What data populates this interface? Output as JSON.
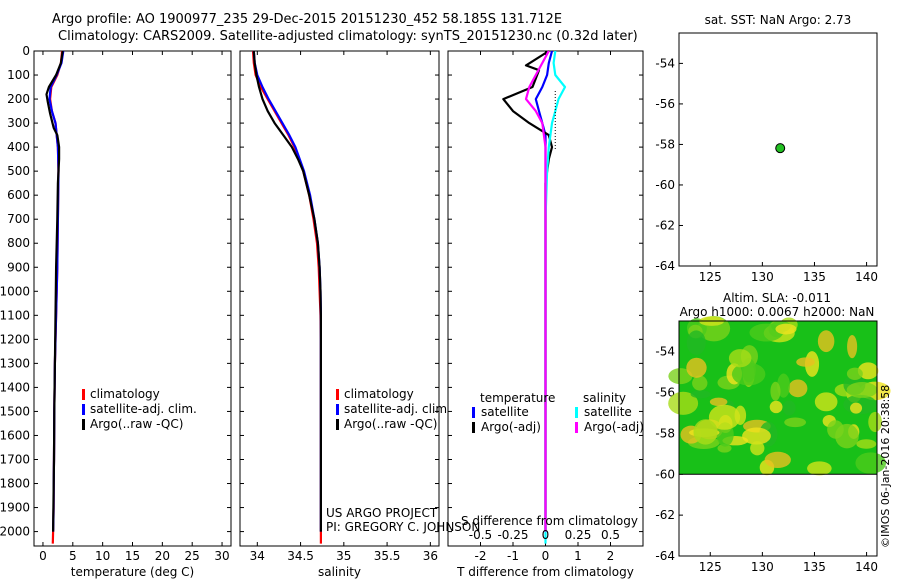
{
  "title_line1": "Argo profile: AO 1900977_235 29-Dec-2015 20151230_452 58.185S 131.712E",
  "title_line2": "Climatology: CARS2009. Satellite-adjusted climatology: synTS_20151230.nc (0.32d later)",
  "colors": {
    "climatology": "#ff0000",
    "satellite": "#0000ff",
    "argo": "#000000",
    "sat_s": "#00ffff",
    "argo_s": "#ff00ff",
    "marker": "#22c022"
  },
  "chart_data": [
    {
      "type": "line",
      "id": "temperature",
      "xlabel": "temperature (deg C)",
      "ylabel": "",
      "xlim": [
        -1.5,
        31.5
      ],
      "ylim": [
        2060,
        0
      ],
      "xticks": [
        0,
        5,
        10,
        15,
        20,
        25,
        30
      ],
      "yticks": [
        0,
        100,
        200,
        300,
        400,
        500,
        600,
        700,
        800,
        900,
        1000,
        1100,
        1200,
        1300,
        1400,
        1500,
        1600,
        1700,
        1800,
        1900,
        2000
      ],
      "legend": [
        "climatology",
        "satellite-adj. clim.",
        "Argo(..raw -QC)"
      ],
      "series": [
        {
          "name": "climatology",
          "color_key": "climatology",
          "x": [
            3.2,
            3.0,
            2.4,
            1.4,
            1.2,
            1.5,
            2.1,
            2.5,
            2.6,
            2.5,
            2.4,
            2.2,
            2.1,
            2.0,
            1.9,
            1.85,
            1.8,
            1.78,
            1.75,
            1.7,
            1.65
          ],
          "y": [
            0,
            50,
            100,
            150,
            200,
            250,
            300,
            400,
            500,
            700,
            900,
            1100,
            1200,
            1300,
            1500,
            1700,
            1800,
            1900,
            1950,
            2000,
            2050
          ]
        },
        {
          "name": "satellite-adj. clim.",
          "color_key": "satellite",
          "x": [
            3.4,
            3.1,
            2.3,
            1.3,
            1.1,
            1.5,
            2.1,
            2.5,
            2.6,
            2.5,
            2.4,
            2.2,
            2.1,
            2.0,
            1.9,
            1.85,
            1.8,
            1.78,
            1.75,
            1.7
          ],
          "y": [
            0,
            50,
            100,
            150,
            200,
            250,
            300,
            400,
            500,
            700,
            900,
            1100,
            1200,
            1300,
            1500,
            1700,
            1800,
            1900,
            1950,
            2000
          ]
        },
        {
          "name": "Argo(..raw -QC)",
          "color_key": "argo",
          "x": [
            3.3,
            3.0,
            2.2,
            1.0,
            0.6,
            0.8,
            1.2,
            1.8,
            2.4,
            2.7,
            2.7,
            2.6,
            2.5,
            2.4,
            2.2,
            2.1,
            2.0,
            1.9,
            1.85,
            1.8,
            1.75,
            1.7
          ],
          "y": [
            0,
            50,
            100,
            150,
            180,
            210,
            260,
            320,
            350,
            400,
            450,
            500,
            550,
            700,
            900,
            1100,
            1300,
            1500,
            1700,
            1800,
            1900,
            2000
          ]
        }
      ]
    },
    {
      "type": "line",
      "id": "salinity",
      "xlabel": "salinity",
      "ylabel": "",
      "xlim": [
        33.8,
        36.1
      ],
      "ylim": [
        2060,
        0
      ],
      "xticks": [
        34,
        34.5,
        35,
        35.5,
        36
      ],
      "legend": [
        "climatology",
        "satellite-adj. clim.",
        "Argo(..raw -QC)"
      ],
      "series": [
        {
          "name": "climatology",
          "color_key": "climatology",
          "x": [
            33.95,
            33.96,
            33.98,
            34.04,
            34.12,
            34.2,
            34.28,
            34.36,
            34.43,
            34.48,
            34.53,
            34.6,
            34.65,
            34.69,
            34.71,
            34.72,
            34.73,
            34.735,
            34.735,
            34.735,
            34.735
          ],
          "y": [
            0,
            50,
            100,
            150,
            200,
            250,
            300,
            350,
            400,
            450,
            500,
            600,
            700,
            800,
            900,
            1000,
            1100,
            1200,
            1500,
            1800,
            2050
          ]
        },
        {
          "name": "satellite-adj. clim.",
          "color_key": "satellite",
          "x": [
            33.96,
            33.97,
            34.0,
            34.06,
            34.13,
            34.21,
            34.29,
            34.37,
            34.44,
            34.49,
            34.54,
            34.61,
            34.66,
            34.7,
            34.72,
            34.73,
            34.735,
            34.735,
            34.735,
            34.735
          ],
          "y": [
            0,
            50,
            100,
            150,
            200,
            250,
            300,
            350,
            400,
            450,
            500,
            600,
            700,
            800,
            900,
            1000,
            1100,
            1200,
            1500,
            2000
          ]
        },
        {
          "name": "Argo(..raw -QC)",
          "color_key": "argo",
          "x": [
            33.96,
            33.97,
            33.99,
            34.02,
            34.06,
            34.12,
            34.2,
            34.3,
            34.4,
            34.47,
            34.53,
            34.6,
            34.66,
            34.7,
            34.72,
            34.73,
            34.735,
            34.735,
            34.735,
            34.735
          ],
          "y": [
            0,
            50,
            100,
            150,
            200,
            250,
            300,
            350,
            400,
            450,
            500,
            600,
            700,
            800,
            900,
            1000,
            1100,
            1200,
            1500,
            2000
          ]
        }
      ]
    },
    {
      "type": "line",
      "id": "difference",
      "xlabel": "T difference from climatology",
      "xlabel_top": "S difference from climatology",
      "xlim": [
        -3,
        3
      ],
      "ylim": [
        2060,
        0
      ],
      "xticks": [
        -2,
        -1,
        0,
        1,
        2
      ],
      "xticks_top": [
        "-0.5",
        "-0.25",
        "0",
        "0.25",
        "0.5"
      ],
      "legend_groups": [
        {
          "title": "temperature",
          "items": [
            "satellite",
            "Argo(-adj)"
          ]
        },
        {
          "title": "salinity",
          "items": [
            "satellite",
            "Argo(-adj)"
          ]
        }
      ],
      "series": [
        {
          "name": "temperature satellite",
          "color_key": "satellite",
          "x": [
            0.2,
            0.1,
            0.05,
            -0.1,
            -0.3,
            -0.2,
            -0.1,
            0,
            0,
            0,
            0,
            0,
            0,
            0,
            0,
            0
          ],
          "y": [
            0,
            50,
            100,
            150,
            200,
            250,
            300,
            350,
            400,
            500,
            700,
            900,
            1200,
            1500,
            1800,
            2000
          ]
        },
        {
          "name": "temperature Argo(-adj)",
          "color_key": "argo",
          "x": [
            0.1,
            -0.6,
            -0.2,
            -0.4,
            -1.3,
            -1.0,
            -0.5,
            0.1,
            0.2,
            0.1,
            0,
            0,
            0
          ],
          "y": [
            0,
            60,
            80,
            150,
            200,
            250,
            300,
            350,
            400,
            450,
            550,
            700,
            2000
          ]
        },
        {
          "name": "salinity satellite",
          "color_key": "sat_s",
          "x": [
            0.3,
            0.25,
            0.3,
            0.6,
            0.4,
            0.3,
            0.2,
            0.1,
            0.05,
            0,
            0,
            0,
            0
          ],
          "y": [
            0,
            50,
            100,
            150,
            200,
            250,
            300,
            400,
            500,
            700,
            1000,
            1500,
            2050
          ]
        },
        {
          "name": "salinity Argo(-adj)",
          "color_key": "argo_s",
          "x": [
            0.1,
            -0.1,
            -0.3,
            -0.5,
            -0.6,
            -0.3,
            -0.1,
            0,
            0,
            0,
            0
          ],
          "y": [
            0,
            50,
            100,
            150,
            200,
            250,
            300,
            400,
            500,
            1000,
            2000
          ]
        }
      ]
    },
    {
      "type": "scatter",
      "id": "map-sst",
      "title": "sat. SST: NaN Argo: 2.73",
      "xlim": [
        122,
        141
      ],
      "ylim": [
        -64,
        -52.5
      ],
      "xticks": [
        125,
        130,
        135,
        140
      ],
      "yticks": [
        -54,
        -56,
        -58,
        -60,
        -62,
        -64
      ],
      "points": [
        {
          "x": 131.712,
          "y": -58.185
        }
      ]
    },
    {
      "type": "heatmap",
      "id": "map-sla",
      "title_line1": "Altim. SLA: -0.011",
      "title_line2": "Argo h1000: 0.0067 h2000: NaN",
      "xlim": [
        122,
        141
      ],
      "ylim": [
        -64,
        -52.5
      ],
      "xticks": [
        125,
        130,
        135,
        140
      ],
      "yticks": [
        -54,
        -56,
        -58,
        -60,
        -62,
        -64
      ],
      "data_extent": {
        "x": [
          122,
          141
        ],
        "y": [
          -60,
          -52.5
        ]
      }
    }
  ],
  "annotations": {
    "project": "US ARGO PROJECT",
    "pi": "PI: GREGORY C. JOHNSON",
    "stamp": "©IMOS 06-Jan-2016 20:38:58"
  }
}
